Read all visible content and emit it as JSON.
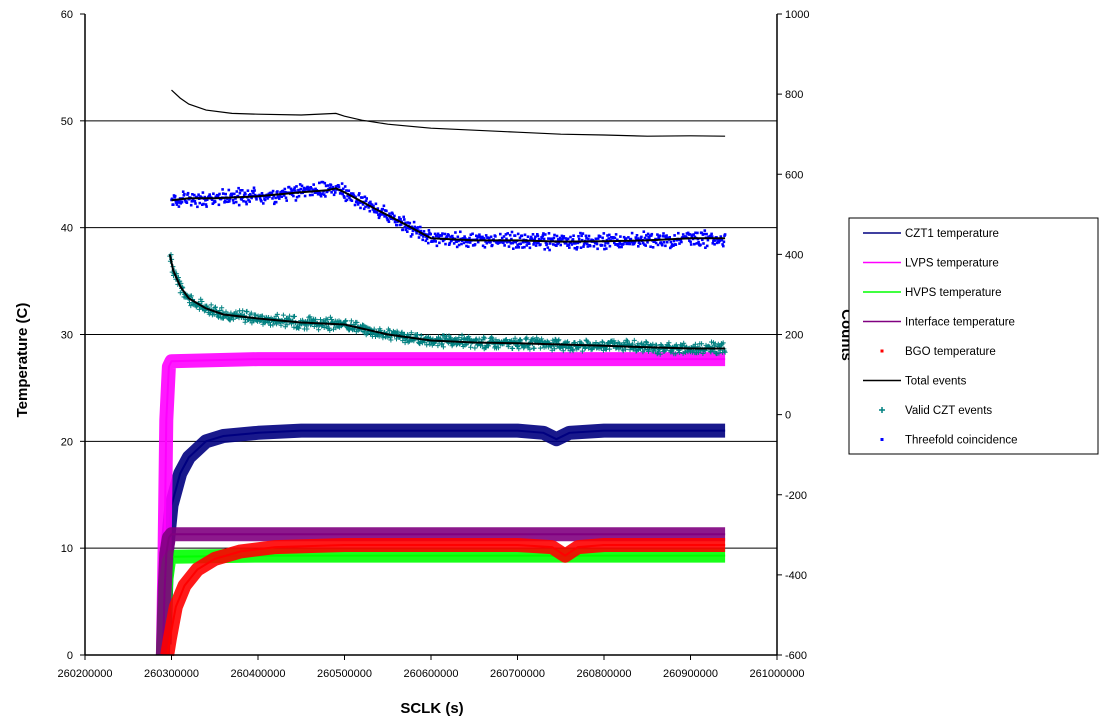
{
  "chart_data": {
    "type": "scatter",
    "xlabel": "SCLK (s)",
    "ylabel": "Temperature (C)",
    "y2label": "Counts",
    "xlim": [
      260200000,
      261000000
    ],
    "ylim": [
      0,
      60
    ],
    "y2lim": [
      -600,
      1000
    ],
    "x_ticks": [
      "260200000",
      "260300000",
      "260400000",
      "260500000",
      "260600000",
      "260700000",
      "260800000",
      "260900000",
      "261000000"
    ],
    "y_ticks": [
      "0",
      "10",
      "20",
      "30",
      "40",
      "50",
      "60"
    ],
    "y2_ticks": [
      "-600",
      "-400",
      "-200",
      "0",
      "200",
      "400",
      "600",
      "800",
      "1000"
    ],
    "grid": "horizontal",
    "legend_position": "right",
    "series": [
      {
        "name": "CZT1 temperature",
        "axis": "left",
        "color": "#000080",
        "marker": "band",
        "x": [
          260292000,
          260295000,
          260300000,
          260310000,
          260320000,
          260340000,
          260360000,
          260400000,
          260450000,
          260500000,
          260550000,
          260600000,
          260650000,
          260700000,
          260730000,
          260745000,
          260760000,
          260800000,
          260850000,
          260900000,
          260940000
        ],
        "y": [
          1,
          10,
          14,
          17,
          18.5,
          20,
          20.5,
          20.8,
          21,
          21,
          21,
          21,
          21,
          21,
          20.8,
          20.2,
          20.8,
          21,
          21,
          21,
          21
        ]
      },
      {
        "name": "LVPS temperature",
        "axis": "left",
        "color": "#ff00ff",
        "marker": "band",
        "x": [
          260290000,
          260292000,
          260294000,
          260297000,
          260300000,
          260400000,
          260500000,
          260600000,
          260700000,
          260800000,
          260900000,
          260940000
        ],
        "y": [
          0,
          10,
          22,
          27,
          27.5,
          27.7,
          27.7,
          27.7,
          27.7,
          27.7,
          27.7,
          27.7
        ]
      },
      {
        "name": "HVPS temperature",
        "axis": "left",
        "color": "#00ff00",
        "marker": "band",
        "x": [
          260290000,
          260292000,
          260294000,
          260297000,
          260300000,
          260400000,
          260500000,
          260600000,
          260700000,
          260800000,
          260900000,
          260940000
        ],
        "y": [
          0,
          4,
          7,
          8.8,
          9.2,
          9.3,
          9.3,
          9.3,
          9.3,
          9.3,
          9.3,
          9.3
        ]
      },
      {
        "name": "Interface temperature",
        "axis": "left",
        "color": "#800080",
        "marker": "band",
        "x": [
          260290000,
          260292000,
          260294000,
          260297000,
          260300000,
          260400000,
          260500000,
          260600000,
          260700000,
          260800000,
          260900000,
          260940000
        ],
        "y": [
          0,
          6,
          9.5,
          11,
          11.3,
          11.3,
          11.3,
          11.3,
          11.3,
          11.3,
          11.3,
          11.3
        ]
      },
      {
        "name": "BGO temperature",
        "axis": "left",
        "color": "#ff0000",
        "marker": "band",
        "x": [
          260295000,
          260298000,
          260305000,
          260315000,
          260330000,
          260350000,
          260380000,
          260420000,
          260500000,
          260600000,
          260700000,
          260740000,
          260755000,
          260770000,
          260800000,
          260900000,
          260940000
        ],
        "y": [
          0,
          1.5,
          4.5,
          6.5,
          8,
          9,
          9.7,
          10.1,
          10.3,
          10.3,
          10.3,
          10.1,
          9.3,
          10.1,
          10.3,
          10.3,
          10.3
        ]
      },
      {
        "name": "Total events",
        "axis": "right",
        "color": "#000000",
        "marker": "line",
        "x": [
          260300000,
          260310000,
          260320000,
          260340000,
          260370000,
          260400000,
          260450000,
          260490000,
          260500000,
          260520000,
          260550000,
          260600000,
          260650000,
          260700000,
          260750000,
          260800000,
          260850000,
          260900000,
          260940000
        ],
        "y": [
          810,
          790,
          775,
          760,
          752,
          750,
          748,
          752,
          745,
          735,
          725,
          715,
          710,
          705,
          700,
          698,
          695,
          696,
          695
        ]
      },
      {
        "name": "Valid CZT events",
        "axis": "right",
        "color": "#008080",
        "marker": "plus",
        "x": [
          260298000,
          260302000,
          260310000,
          260320000,
          260340000,
          260360000,
          260400000,
          260450000,
          260500000,
          260550000,
          260600000,
          260650000,
          260700000,
          260750000,
          260800000,
          260850000,
          260900000,
          260940000
        ],
        "y": [
          400,
          360,
          320,
          290,
          265,
          250,
          240,
          230,
          225,
          200,
          185,
          180,
          178,
          175,
          172,
          168,
          165,
          165
        ]
      },
      {
        "name": "Threefold coincidence",
        "axis": "right",
        "color": "#0000ff",
        "marker": "dot",
        "x": [
          260300000,
          260320000,
          260350000,
          260400000,
          260450000,
          260480000,
          260490000,
          260500000,
          260530000,
          260570000,
          260600000,
          260650000,
          260700000,
          260750000,
          260800000,
          260850000,
          260900000,
          260940000
        ],
        "y": [
          535,
          540,
          540,
          545,
          555,
          560,
          565,
          555,
          520,
          475,
          440,
          435,
          435,
          432,
          433,
          435,
          440,
          440
        ]
      }
    ]
  }
}
